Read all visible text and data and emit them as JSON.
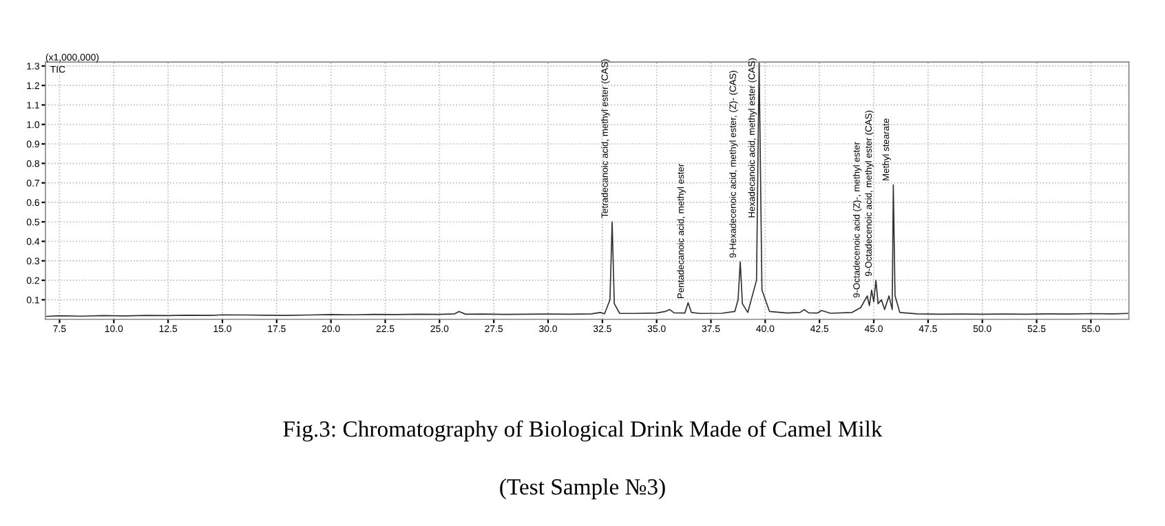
{
  "chart_data": {
    "type": "line",
    "xlim": [
      6.85,
      56.75
    ],
    "xticks": [
      {
        "value": 7.5,
        "label": "7.5"
      },
      {
        "value": 10.0,
        "label": "10.0"
      },
      {
        "value": 12.5,
        "label": "12.5"
      },
      {
        "value": 15.0,
        "label": "15.0"
      },
      {
        "value": 17.5,
        "label": "17.5"
      },
      {
        "value": 20.0,
        "label": "20.0"
      },
      {
        "value": 22.5,
        "label": "22.5"
      },
      {
        "value": 25.0,
        "label": "25.0"
      },
      {
        "value": 27.5,
        "label": "27.5"
      },
      {
        "value": 30.0,
        "label": "30.0"
      },
      {
        "value": 32.5,
        "label": "32.5"
      },
      {
        "value": 35.0,
        "label": "35.0"
      },
      {
        "value": 37.5,
        "label": "37.5"
      },
      {
        "value": 40.0,
        "label": "40.0"
      },
      {
        "value": 42.5,
        "label": "42.5"
      },
      {
        "value": 45.0,
        "label": "45.0"
      },
      {
        "value": 47.5,
        "label": "47.5"
      },
      {
        "value": 50.0,
        "label": "50.0"
      },
      {
        "value": 52.5,
        "label": "52.5"
      },
      {
        "value": 55.0,
        "label": "55.0"
      }
    ],
    "ylim": [
      0,
      1.32
    ],
    "yticks": [
      0.1,
      0.2,
      0.3,
      0.4,
      0.5,
      0.6,
      0.7,
      0.8,
      0.9,
      {
        "value": 1.0,
        "label": "1.0"
      },
      1.1,
      1.2,
      1.3
    ],
    "grid": true,
    "line_style": "solid",
    "marker": "none",
    "series": [
      {
        "color": "#303030",
        "x": [
          6.9,
          7.5,
          8.5,
          9.5,
          10.5,
          11.5,
          12.5,
          13.5,
          14.5,
          15.0,
          16.0,
          17.0,
          18.0,
          19.0,
          20.0,
          21.0,
          22.0,
          23.0,
          24.0,
          25.0,
          25.7,
          25.9,
          26.2,
          27.0,
          28.0,
          29.0,
          30.0,
          31.0,
          32.0,
          32.4,
          32.6,
          32.85,
          32.95,
          33.05,
          33.3,
          34.0,
          35.0,
          35.4,
          35.6,
          35.8,
          36.3,
          36.45,
          36.6,
          37.0,
          38.0,
          38.6,
          38.75,
          38.85,
          38.95,
          39.2,
          39.6,
          39.72,
          39.85,
          40.2,
          41.0,
          41.6,
          41.8,
          42.0,
          42.4,
          42.6,
          43.0,
          44.0,
          44.4,
          44.55,
          44.7,
          44.8,
          44.9,
          45.0,
          45.1,
          45.2,
          45.35,
          45.5,
          45.7,
          45.85,
          45.9,
          45.98,
          46.2,
          47.0,
          48.0,
          49.0,
          50.0,
          51.0,
          52.0,
          53.0,
          54.0,
          55.0,
          56.0,
          56.7
        ],
        "values": [
          0.015,
          0.018,
          0.016,
          0.019,
          0.017,
          0.02,
          0.019,
          0.021,
          0.02,
          0.023,
          0.022,
          0.021,
          0.02,
          0.022,
          0.024,
          0.023,
          0.025,
          0.024,
          0.026,
          0.025,
          0.028,
          0.04,
          0.026,
          0.027,
          0.025,
          0.026,
          0.027,
          0.026,
          0.028,
          0.035,
          0.028,
          0.1,
          0.5,
          0.08,
          0.03,
          0.03,
          0.032,
          0.04,
          0.05,
          0.033,
          0.032,
          0.085,
          0.035,
          0.03,
          0.031,
          0.04,
          0.1,
          0.295,
          0.08,
          0.035,
          0.2,
          1.32,
          0.15,
          0.04,
          0.032,
          0.035,
          0.05,
          0.033,
          0.032,
          0.045,
          0.031,
          0.035,
          0.06,
          0.09,
          0.12,
          0.07,
          0.15,
          0.09,
          0.2,
          0.08,
          0.1,
          0.05,
          0.12,
          0.05,
          0.69,
          0.12,
          0.035,
          0.028,
          0.026,
          0.027,
          0.026,
          0.027,
          0.026,
          0.028,
          0.027,
          0.029,
          0.028,
          0.03
        ]
      }
    ],
    "annotations": [
      {
        "text": "Tetradecanoic acid, methyl ester (CAS)",
        "x": 32.95,
        "y": 0.5
      },
      {
        "text": "Pentadecanoic acid, methyl ester",
        "x": 36.45,
        "y": 0.085
      },
      {
        "text": "9-Hexadecenoic acid, methyl ester, (Z)- (CAS)",
        "x": 38.85,
        "y": 0.295
      },
      {
        "text": "Hexadecanoic acid, methyl ester (CAS)",
        "x": 39.72,
        "y": 0.5
      },
      {
        "text": "9-Octadecenoic acid (Z)-, methyl ester",
        "x": 44.55,
        "y": 0.09
      },
      {
        "text": "9-Octadecenoic acid, methyl ester (CAS)",
        "x": 45.1,
        "y": 0.2
      },
      {
        "text": "Methyl stearate",
        "x": 45.9,
        "y": 0.69
      },
      "(x1,000,000)",
      "TIC",
      "Fig.3: Chromatography of Biological Drink Made of Camel Milk",
      "(Test Sample №3)"
    ]
  }
}
